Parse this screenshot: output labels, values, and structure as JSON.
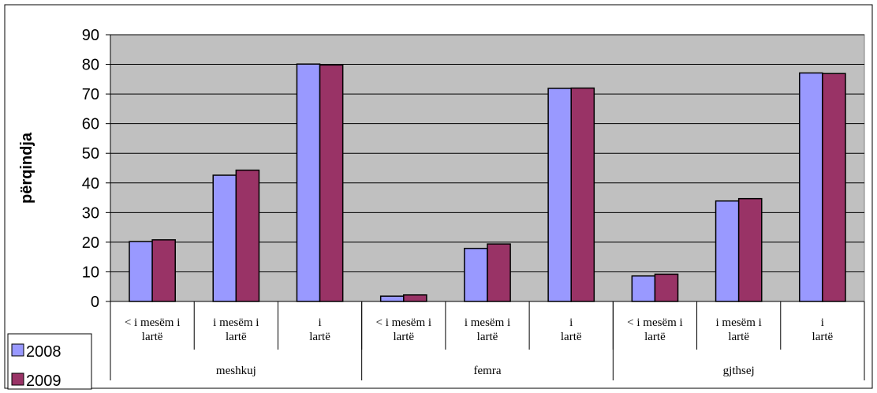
{
  "chart_data": {
    "type": "bar",
    "title": "",
    "ylabel": "përqindja",
    "xlabel": "",
    "ylim": [
      0,
      90
    ],
    "yticks": [
      "0",
      "10",
      "20",
      "30",
      "40",
      "50",
      "60",
      "70",
      "80",
      "90"
    ],
    "grid": true,
    "legend_position": "bottom-left",
    "plot_background": "#c0c0c0",
    "groups": [
      {
        "label": "meshkuj",
        "categories": [
          "< i mesëm i lartë",
          "i mesëm i lartë",
          "i lartë"
        ]
      },
      {
        "label": "femra",
        "categories": [
          "< i mesëm i lartë",
          "i mesëm i lartë",
          "i lartë"
        ]
      },
      {
        "label": "gjthsej",
        "categories": [
          "< i mesëm i lartë",
          "i mesëm i lartë",
          "i lartë"
        ]
      }
    ],
    "series": [
      {
        "name": "2008",
        "color": "#9999ff",
        "values": [
          20.2,
          42.6,
          80.1,
          1.8,
          17.9,
          71.9,
          8.6,
          33.9,
          77.1
        ]
      },
      {
        "name": "2009",
        "color": "#993366",
        "values": [
          20.8,
          44.3,
          79.8,
          2.2,
          19.4,
          72.0,
          9.2,
          34.7,
          76.9
        ]
      }
    ]
  }
}
